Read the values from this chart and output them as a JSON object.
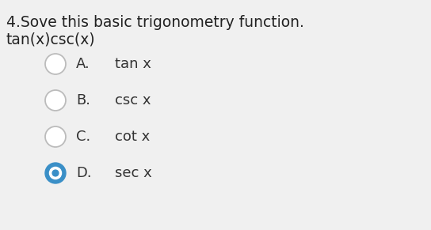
{
  "background_color": "#f0f0f0",
  "title_line1": "4.Sove this basic trigonometry function.",
  "title_line2": "tan(x)csc(x)",
  "options": [
    {
      "label": "A.",
      "text": "tan x",
      "selected": false
    },
    {
      "label": "B.",
      "text": "csc x",
      "selected": false
    },
    {
      "label": "C.",
      "text": "cot x",
      "selected": false
    },
    {
      "label": "D.",
      "text": "sec x",
      "selected": true
    }
  ],
  "selected_color": "#3a8fc7",
  "selected_inner_color": "#ffffff",
  "unselected_edge": "#bbbbbb",
  "unselected_fill": "#ffffff",
  "text_color": "#333333",
  "title_color": "#222222",
  "title_fontsize": 13.5,
  "option_label_fontsize": 13.0,
  "option_text_fontsize": 13.0
}
